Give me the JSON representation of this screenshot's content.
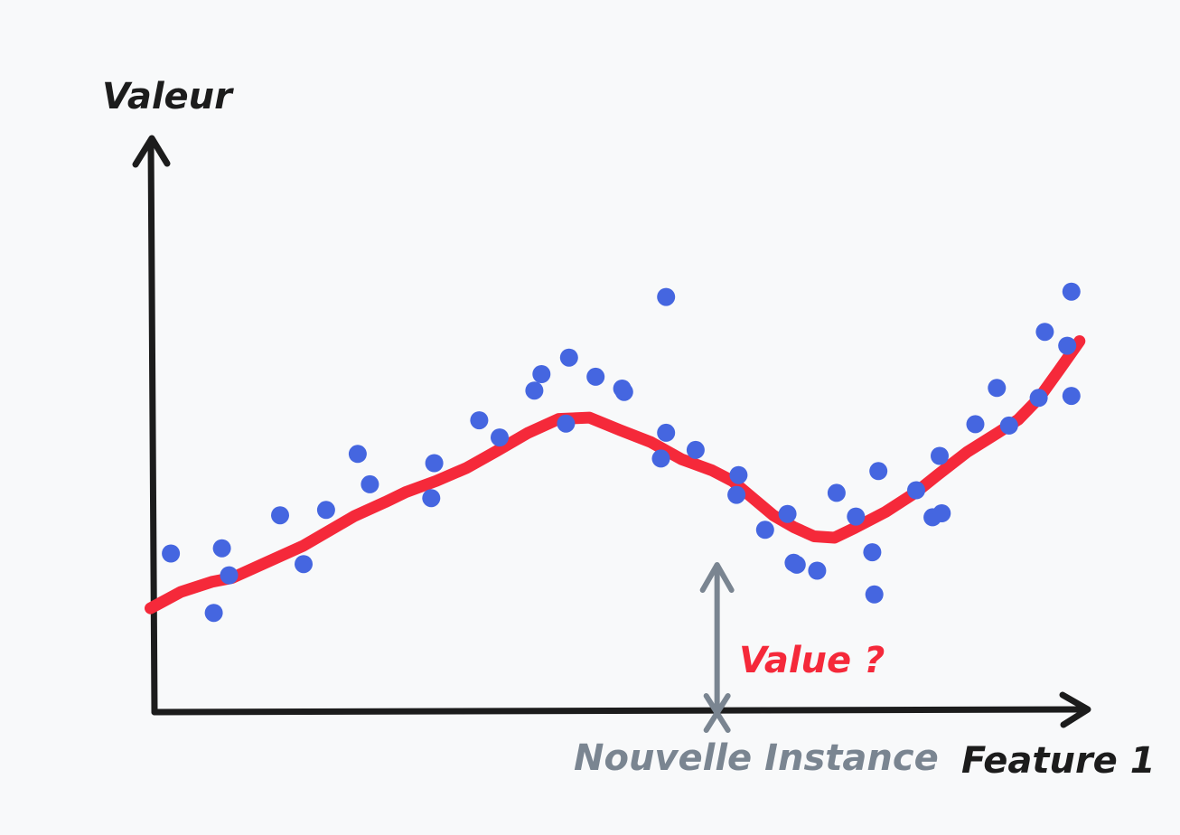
{
  "chart_data": {
    "type": "scatter",
    "title": "",
    "xlabel": "Feature 1",
    "ylabel": "Valeur",
    "xlim": [
      0,
      100
    ],
    "ylim": [
      0,
      100
    ],
    "grid": false,
    "colors": {
      "points": "#4566e0",
      "curve": "#f5293a",
      "axis": "#1c1c1c",
      "instance": "#7a8591",
      "question": "#f5293a"
    },
    "series": [
      {
        "type": "scatter",
        "points": [
          [
            7,
            33.9
          ],
          [
            12,
            34.7
          ],
          [
            11.2,
            24.9
          ],
          [
            12.7,
            30.6
          ],
          [
            17.7,
            39.7
          ],
          [
            20,
            32.3
          ],
          [
            22.2,
            40.5
          ],
          [
            25.3,
            49
          ],
          [
            26.5,
            44.4
          ],
          [
            32.5,
            42.3
          ],
          [
            32.8,
            47.6
          ],
          [
            37.2,
            54.1
          ],
          [
            39.2,
            51.5
          ],
          [
            42.6,
            58.6
          ],
          [
            43.3,
            61.1
          ],
          [
            45.7,
            53.6
          ],
          [
            46,
            63.6
          ],
          [
            48.6,
            60.7
          ],
          [
            51.2,
            58.9
          ],
          [
            51.4,
            58.4
          ],
          [
            55,
            48.3
          ],
          [
            55.5,
            52.2
          ],
          [
            55.5,
            72.8
          ],
          [
            58.4,
            49.6
          ],
          [
            62.4,
            42.8
          ],
          [
            62.6,
            45.8
          ],
          [
            65.2,
            37.5
          ],
          [
            67.4,
            39.9
          ],
          [
            68,
            32.5
          ],
          [
            68.3,
            32.2
          ],
          [
            70.3,
            31.3
          ],
          [
            72.2,
            43.1
          ],
          [
            74.1,
            39.5
          ],
          [
            75.7,
            34.1
          ],
          [
            75.9,
            27.7
          ],
          [
            76.3,
            46.4
          ],
          [
            80,
            43.5
          ],
          [
            81.6,
            39.4
          ],
          [
            82.3,
            48.7
          ],
          [
            82.5,
            40
          ],
          [
            85.8,
            53.5
          ],
          [
            87.9,
            59
          ],
          [
            89.1,
            53.3
          ],
          [
            92,
            57.5
          ],
          [
            92.6,
            67.5
          ],
          [
            94.8,
            65.4
          ],
          [
            95.2,
            73.6
          ],
          [
            95.2,
            57.8
          ]
        ]
      },
      {
        "type": "line",
        "points": [
          [
            5,
            25.6
          ],
          [
            8,
            28.1
          ],
          [
            11,
            29.6
          ],
          [
            13,
            30.2
          ],
          [
            16,
            32.3
          ],
          [
            20,
            35.1
          ],
          [
            25,
            39.6
          ],
          [
            28,
            41.7
          ],
          [
            30,
            43.2
          ],
          [
            33,
            44.9
          ],
          [
            36,
            46.9
          ],
          [
            39,
            49.5
          ],
          [
            42,
            52.2
          ],
          [
            45,
            54.3
          ],
          [
            48,
            54.5
          ],
          [
            51,
            52.6
          ],
          [
            54,
            50.8
          ],
          [
            57,
            48.2
          ],
          [
            60,
            46.5
          ],
          [
            62,
            44.9
          ],
          [
            64,
            42.3
          ],
          [
            66,
            39.7
          ],
          [
            68,
            37.9
          ],
          [
            70,
            36.5
          ],
          [
            72,
            36.3
          ],
          [
            74,
            37.8
          ],
          [
            77,
            40.2
          ],
          [
            80,
            43.2
          ],
          [
            82,
            45.7
          ],
          [
            85,
            49.3
          ],
          [
            88,
            52.2
          ],
          [
            90,
            54.2
          ],
          [
            92,
            57.4
          ],
          [
            94,
            61.7
          ],
          [
            96,
            66.1
          ]
        ]
      }
    ],
    "annotation": {
      "label": "Value ?",
      "instance_label": "Nouvelle Instance",
      "x": 60.5
    }
  }
}
